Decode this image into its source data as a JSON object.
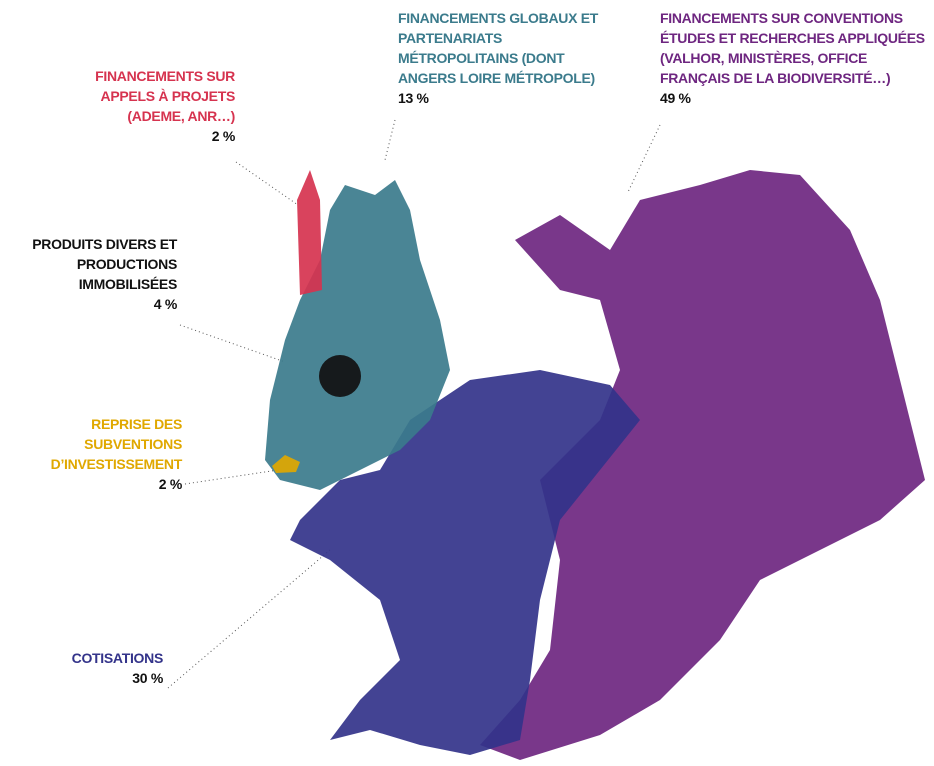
{
  "chart_data": {
    "type": "pictorial",
    "categories": [
      "FINANCEMENTS SUR APPELS À PROJETS (ADEME, ANR…)",
      "FINANCEMENTS GLOBAUX ET PARTENARIATS MÉTROPOLITAINS (DONT ANGERS LOIRE MÉTROPOLE)",
      "FINANCEMENTS SUR CONVENTIONS ÉTUDES ET RECHERCHES APPLIQUÉES (VALHOR, MINISTÈRES, OFFICE FRANÇAIS DE LA BIODIVERSITÉ…)",
      "PRODUITS DIVERS ET PRODUCTIONS IMMOBILISÉES",
      "REPRISE DES SUBVENTIONS D’INVESTISSEMENT",
      "COTISATIONS"
    ],
    "values": [
      2,
      13,
      49,
      4,
      2,
      30
    ],
    "value_labels": [
      "2 %",
      "13 %",
      "49 %",
      "4 %",
      "2 %",
      "30 %"
    ],
    "colors": [
      "#d6334f",
      "#3b7b8c",
      "#6e2680",
      "#111111",
      "#e0a800",
      "#33338a"
    ]
  }
}
